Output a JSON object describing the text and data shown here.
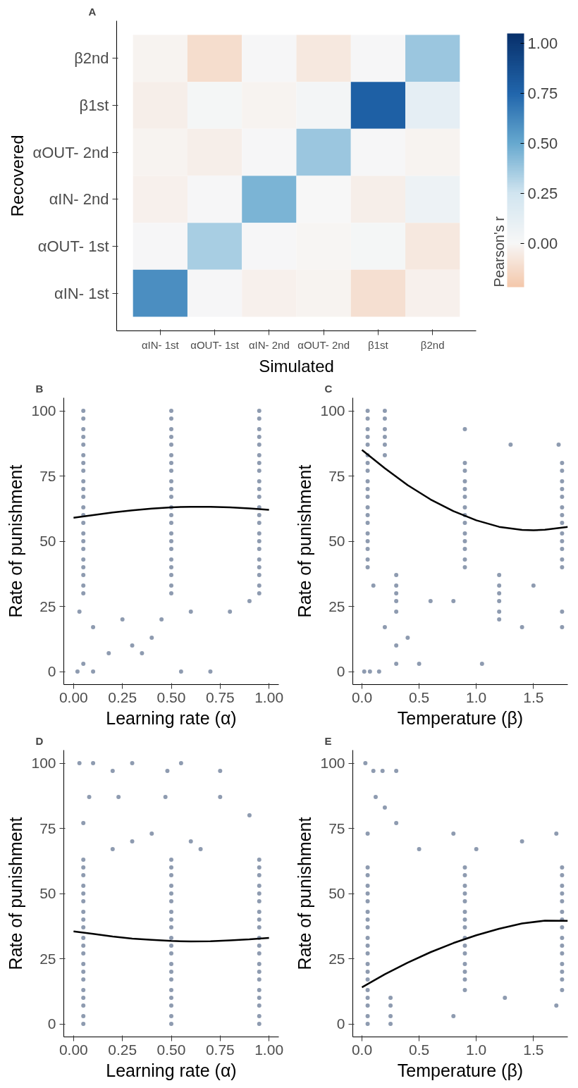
{
  "chart_data": [
    {
      "type": "heatmap",
      "annotations": [
        "A"
      ],
      "xlabel": "Simulated",
      "ylabel": "Recovered",
      "clabel": "Pearson's r",
      "categories": [
        "αIN- 1st",
        "αOUT- 1st",
        "αIN- 2nd",
        "αOUT- 2nd",
        "β1st",
        "β2nd"
      ],
      "y_categories": [
        "β2nd",
        "β1st",
        "αOUT- 2nd",
        "αIN- 2nd",
        "αOUT- 1st",
        "αIN- 1st"
      ],
      "cells": [
        [
          -0.02,
          -0.12,
          0.01,
          -0.07,
          0.01,
          0.38
        ],
        [
          -0.04,
          0.02,
          -0.02,
          0.03,
          0.78,
          0.12
        ],
        [
          -0.02,
          -0.04,
          0.01,
          0.38,
          0.01,
          -0.02
        ],
        [
          -0.03,
          0.01,
          0.45,
          0.0,
          -0.04,
          0.07
        ],
        [
          0.01,
          0.35,
          0.01,
          -0.01,
          0.02,
          -0.07
        ],
        [
          0.6,
          0.01,
          -0.03,
          -0.02,
          -0.11,
          -0.03
        ]
      ],
      "clim": [
        -0.22,
        1.05
      ],
      "cticks": [
        {
          "value": 0,
          "label": "0.00"
        },
        {
          "value": 0.25,
          "label": "0.25"
        },
        {
          "value": 0.5,
          "label": "0.50"
        },
        {
          "value": 0.75,
          "label": "0.75"
        },
        {
          "value": 1,
          "label": "1.00"
        }
      ]
    },
    {
      "type": "scatter",
      "annotations": [
        "B"
      ],
      "xlabel": "Learning rate (α)",
      "ylabel": "Rate of punishment",
      "xlim": [
        -0.05,
        1.05
      ],
      "ylim": [
        -5,
        105
      ],
      "xticks": [
        {
          "value": 0,
          "label": "0.00"
        },
        {
          "value": 0.25,
          "label": "0.25"
        },
        {
          "value": 0.5,
          "label": "0.50"
        },
        {
          "value": 0.75,
          "label": "0.75"
        },
        {
          "value": 1,
          "label": "1.00"
        }
      ],
      "yticks": [
        0,
        25,
        50,
        75,
        100
      ],
      "series": [
        {
          "type": "scatter",
          "marker": "circle",
          "color": "#8e9bb0",
          "x": [
            0.05,
            0.5,
            0.95,
            0.05,
            0.5,
            0.95,
            0.05,
            0.5,
            0.95,
            0.05,
            0.5,
            0.95,
            0.05,
            0.5,
            0.95,
            0.05,
            0.5,
            0.95,
            0.05,
            0.5,
            0.95,
            0.05,
            0.5,
            0.95,
            0.05,
            0.5,
            0.95,
            0.05,
            0.5,
            0.95,
            0.05,
            0.5,
            0.95,
            0.05,
            0.5,
            0.95,
            0.05,
            0.5,
            0.95,
            0.05,
            0.5,
            0.95,
            0.05,
            0.5,
            0.95,
            0.05,
            0.5,
            0.95,
            0.05,
            0.5,
            0.95,
            0.05,
            0.5,
            0.95,
            0.05,
            0.5,
            0.95,
            0.05,
            0.5,
            0.95,
            0.05,
            0.5,
            0.95,
            0.05,
            0.5,
            0.95,
            0.02,
            0.05,
            0.1,
            0.18,
            0.3,
            0.4,
            0.55,
            0.7,
            0.1,
            0.25,
            0.6,
            0.9,
            0.45,
            0.8,
            0.03,
            0.35
          ],
          "values": [
            30,
            30,
            30,
            33,
            33,
            33,
            37,
            37,
            37,
            40,
            40,
            40,
            43,
            43,
            43,
            47,
            47,
            47,
            50,
            50,
            50,
            53,
            53,
            53,
            57,
            57,
            57,
            60,
            60,
            60,
            63,
            63,
            63,
            67,
            67,
            67,
            70,
            70,
            70,
            73,
            73,
            73,
            77,
            77,
            77,
            80,
            80,
            80,
            83,
            83,
            83,
            87,
            87,
            87,
            90,
            90,
            90,
            93,
            93,
            93,
            97,
            97,
            97,
            100,
            100,
            100,
            0,
            3,
            0,
            7,
            10,
            13,
            0,
            0,
            17,
            20,
            23,
            27,
            20,
            23,
            23,
            7
          ]
        },
        {
          "type": "line",
          "color": "#000000",
          "x": [
            0,
            0.1,
            0.2,
            0.3,
            0.4,
            0.5,
            0.6,
            0.7,
            0.8,
            0.9,
            1.0
          ],
          "values": [
            59,
            60,
            61,
            61.8,
            62.5,
            63,
            63.2,
            63.2,
            63,
            62.6,
            62
          ]
        }
      ]
    },
    {
      "type": "scatter",
      "annotations": [
        "C"
      ],
      "xlabel": "Temperature (β)",
      "ylabel": "Rate of punishment",
      "xlim": [
        -0.08,
        1.8
      ],
      "ylim": [
        -5,
        105
      ],
      "xticks": [
        {
          "value": 0,
          "label": "0.0"
        },
        {
          "value": 0.5,
          "label": "0.5"
        },
        {
          "value": 1,
          "label": "1.0"
        },
        1.5
      ],
      "yticks": [
        0,
        25,
        50,
        75,
        100
      ],
      "series": [
        {
          "type": "scatter",
          "marker": "circle",
          "color": "#8e9bb0",
          "x": [
            0.05,
            0.9,
            1.75,
            0.05,
            0.9,
            1.75,
            0.05,
            0.9,
            1.75,
            0.05,
            0.9,
            1.75,
            0.05,
            0.9,
            1.75,
            0.05,
            0.9,
            1.75,
            0.05,
            0.9,
            1.75,
            0.05,
            0.9,
            1.75,
            0.05,
            0.9,
            1.75,
            0.05,
            0.9,
            1.75,
            0.05,
            0.9,
            1.75,
            0.05,
            0.9,
            1.75,
            0.05,
            0.9,
            1.75,
            0.05,
            0.2,
            0.05,
            0.2,
            0.05,
            0.2,
            0.05,
            0.2,
            0.05,
            0.2,
            0.05,
            0.2,
            0.3,
            1.2,
            0.3,
            1.2,
            0.3,
            1.2,
            0.3,
            1.2,
            0.3,
            1.2,
            0.02,
            0.07,
            0.15,
            0.3,
            0.5,
            1.05,
            0.3,
            0.4,
            0.2,
            1.4,
            1.75,
            1.2,
            0.8,
            1.75,
            0.9,
            1.3,
            1.72,
            0.6,
            0.1,
            1.5
          ],
          "values": [
            40,
            40,
            40,
            43,
            43,
            43,
            47,
            47,
            47,
            50,
            50,
            50,
            53,
            53,
            53,
            57,
            57,
            57,
            60,
            60,
            60,
            63,
            63,
            63,
            67,
            67,
            67,
            70,
            70,
            70,
            73,
            73,
            73,
            77,
            77,
            77,
            80,
            80,
            80,
            83,
            83,
            87,
            87,
            90,
            90,
            93,
            93,
            97,
            97,
            100,
            100,
            23,
            23,
            27,
            27,
            30,
            30,
            33,
            33,
            37,
            37,
            0,
            0,
            0,
            3,
            3,
            3,
            10,
            13,
            17,
            17,
            17,
            20,
            27,
            23,
            93,
            87,
            87,
            27,
            33,
            33
          ]
        },
        {
          "type": "line",
          "color": "#000000",
          "x": [
            0,
            0.2,
            0.4,
            0.6,
            0.8,
            1.0,
            1.2,
            1.4,
            1.5,
            1.6,
            1.8
          ],
          "values": [
            85,
            78,
            71.5,
            66,
            61.5,
            58,
            55.5,
            54.3,
            54.2,
            54.4,
            55.5
          ]
        }
      ]
    },
    {
      "type": "scatter",
      "annotations": [
        "D"
      ],
      "xlabel": "Learning rate (α)",
      "ylabel": "Rate of punishment",
      "xlim": [
        -0.05,
        1.05
      ],
      "ylim": [
        -5,
        105
      ],
      "xticks": [
        {
          "value": 0,
          "label": "0.00"
        },
        {
          "value": 0.25,
          "label": "0.25"
        },
        {
          "value": 0.5,
          "label": "0.50"
        },
        {
          "value": 0.75,
          "label": "0.75"
        },
        {
          "value": 1,
          "label": "1.00"
        }
      ],
      "yticks": [
        0,
        25,
        50,
        75,
        100
      ],
      "series": [
        {
          "type": "scatter",
          "marker": "circle",
          "color": "#8e9bb0",
          "x": [
            0.05,
            0.5,
            0.95,
            0.05,
            0.5,
            0.95,
            0.05,
            0.5,
            0.95,
            0.05,
            0.5,
            0.95,
            0.05,
            0.5,
            0.95,
            0.05,
            0.5,
            0.95,
            0.05,
            0.5,
            0.95,
            0.05,
            0.5,
            0.95,
            0.05,
            0.5,
            0.95,
            0.05,
            0.5,
            0.95,
            0.05,
            0.5,
            0.95,
            0.05,
            0.5,
            0.95,
            0.05,
            0.5,
            0.95,
            0.05,
            0.5,
            0.95,
            0.05,
            0.5,
            0.95,
            0.05,
            0.5,
            0.95,
            0.05,
            0.5,
            0.95,
            0.05,
            0.5,
            0.95,
            0.05,
            0.5,
            0.95,
            0.05,
            0.5,
            0.95,
            0.03,
            0.1,
            0.2,
            0.3,
            0.48,
            0.55,
            0.75,
            0.08,
            0.23,
            0.47,
            0.75,
            0.05,
            0.4,
            0.9,
            0.6,
            0.3,
            0.2,
            0.65
          ],
          "values": [
            0,
            0,
            0,
            3,
            3,
            3,
            7,
            7,
            7,
            10,
            10,
            10,
            13,
            13,
            13,
            17,
            17,
            17,
            20,
            20,
            20,
            23,
            23,
            23,
            27,
            27,
            27,
            30,
            30,
            30,
            33,
            33,
            33,
            37,
            37,
            37,
            40,
            40,
            40,
            43,
            43,
            43,
            47,
            47,
            47,
            50,
            50,
            50,
            53,
            53,
            53,
            57,
            57,
            57,
            60,
            60,
            60,
            63,
            63,
            63,
            100,
            100,
            97,
            100,
            97,
            100,
            97,
            87,
            87,
            87,
            87,
            77,
            73,
            80,
            70,
            70,
            67,
            67
          ]
        },
        {
          "type": "line",
          "color": "#000000",
          "x": [
            0,
            0.1,
            0.2,
            0.3,
            0.4,
            0.5,
            0.6,
            0.7,
            0.8,
            0.9,
            1.0
          ],
          "values": [
            35.5,
            34.5,
            33.5,
            32.7,
            32.2,
            31.8,
            31.6,
            31.7,
            32,
            32.4,
            33
          ]
        }
      ]
    },
    {
      "type": "scatter",
      "annotations": [
        "E"
      ],
      "xlabel": "Temperature (β)",
      "ylabel": "Rate of punishment",
      "xlim": [
        -0.08,
        1.8
      ],
      "ylim": [
        -5,
        105
      ],
      "xticks": [
        {
          "value": 0,
          "label": "0.0"
        },
        {
          "value": 0.5,
          "label": "0.5"
        },
        {
          "value": 1,
          "label": "1.0"
        },
        1.5
      ],
      "yticks": [
        0,
        25,
        50,
        75,
        100
      ],
      "series": [
        {
          "type": "scatter",
          "marker": "circle",
          "color": "#8e9bb0",
          "x": [
            0.05,
            0.25,
            0.05,
            0.25,
            0.05,
            0.25,
            0.05,
            0.25,
            0.05,
            0.9,
            1.75,
            0.05,
            0.9,
            1.75,
            0.05,
            0.9,
            1.75,
            0.05,
            0.9,
            1.75,
            0.05,
            0.9,
            1.75,
            0.05,
            0.9,
            1.75,
            0.05,
            0.9,
            1.75,
            0.05,
            0.9,
            1.75,
            0.05,
            0.9,
            1.75,
            0.05,
            0.9,
            1.75,
            0.05,
            0.9,
            1.75,
            0.05,
            0.9,
            1.75,
            0.05,
            0.9,
            1.75,
            0.05,
            0.9,
            1.75,
            0.05,
            0.9,
            1.75,
            0.03,
            0.1,
            0.18,
            0.3,
            0.12,
            0.2,
            0.3,
            0.05,
            0.5,
            1.0,
            1.4,
            1.7,
            0.8,
            0.8,
            1.7,
            1.25
          ],
          "values": [
            0,
            0,
            3,
            3,
            7,
            7,
            10,
            10,
            13,
            13,
            13,
            17,
            17,
            17,
            20,
            20,
            20,
            23,
            23,
            23,
            27,
            27,
            27,
            30,
            30,
            30,
            33,
            33,
            33,
            37,
            37,
            37,
            40,
            40,
            40,
            43,
            43,
            43,
            47,
            47,
            47,
            50,
            50,
            50,
            53,
            53,
            53,
            57,
            57,
            57,
            60,
            60,
            60,
            100,
            97,
            97,
            97,
            87,
            83,
            77,
            73,
            67,
            67,
            70,
            73,
            73,
            3,
            7,
            10
          ]
        },
        {
          "type": "line",
          "color": "#000000",
          "x": [
            0,
            0.2,
            0.4,
            0.6,
            0.8,
            1.0,
            1.2,
            1.4,
            1.6,
            1.8
          ],
          "values": [
            14,
            19,
            23.5,
            27.5,
            31,
            34,
            36.5,
            38.5,
            39.6,
            39.5
          ]
        }
      ]
    }
  ]
}
